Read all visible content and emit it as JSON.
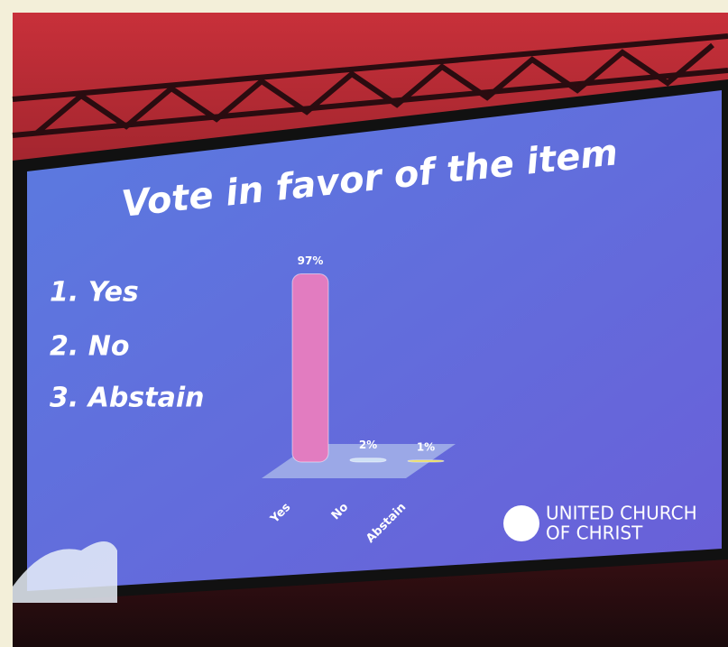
{
  "chart_data": {
    "type": "bar",
    "title": "Vote in favor of the item",
    "categories": [
      "Yes",
      "No",
      "Abstain"
    ],
    "values": [
      97,
      2,
      1
    ],
    "value_labels": [
      "97%",
      "2%",
      "1%"
    ],
    "colors": [
      "#e27cc0",
      "#cfe0f5",
      "#e8d84a"
    ]
  },
  "slide": {
    "options": [
      "1. Yes",
      "2. No",
      "3. Abstain"
    ],
    "logo": [
      "UNITED CHURCH",
      "OF CHRIST"
    ]
  }
}
